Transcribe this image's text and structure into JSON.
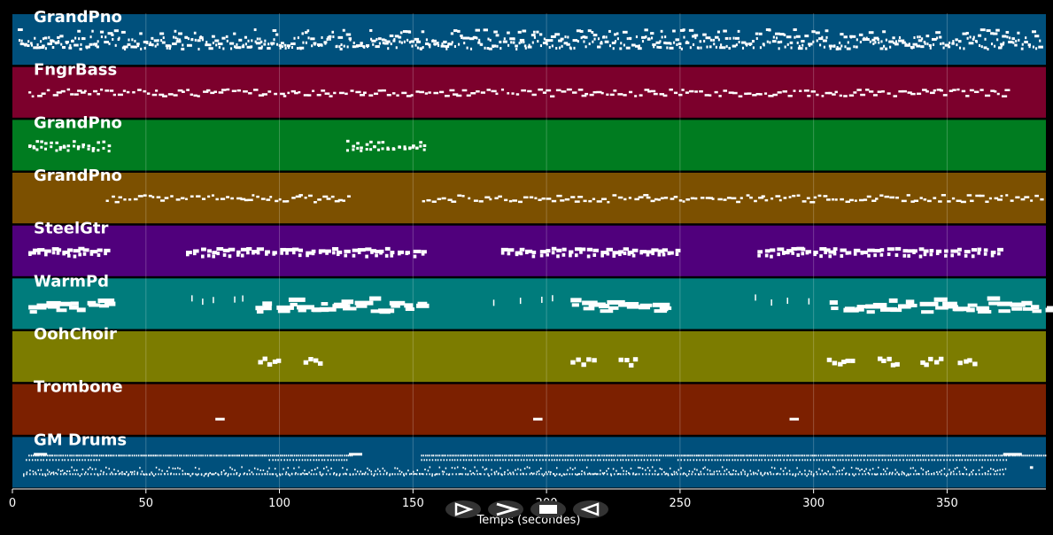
{
  "timeline": {
    "x_axis_label": "Temps (secondes)",
    "x_range": [
      0,
      387
    ],
    "x_ticks": [
      0,
      50,
      100,
      150,
      200,
      250,
      300,
      350
    ]
  },
  "tracks": [
    {
      "name": "GrandPno",
      "color": "#00507c",
      "pattern": "dense"
    },
    {
      "name": "FngrBass",
      "color": "#7c002c",
      "pattern": "line"
    },
    {
      "name": "GrandPno",
      "color": "#007c20",
      "pattern": "sparse"
    },
    {
      "name": "GrandPno",
      "color": "#7c5000",
      "pattern": "line"
    },
    {
      "name": "SteelGtr",
      "color": "#50007c",
      "pattern": "blocks"
    },
    {
      "name": "WarmPd",
      "color": "#007c7c",
      "pattern": "pads"
    },
    {
      "name": "OohChoir",
      "color": "#7c7c00",
      "pattern": "choir"
    },
    {
      "name": "Trombone",
      "color": "#7c2000",
      "pattern": "hits"
    },
    {
      "name": "GM Drums",
      "color": "#00507c",
      "pattern": "drums"
    }
  ],
  "controls": {
    "buttons": [
      {
        "name": "play-button",
        "icon": "play-icon"
      },
      {
        "name": "forward-button",
        "icon": "forward-icon"
      },
      {
        "name": "stop-button",
        "icon": "stop-icon"
      },
      {
        "name": "rewind-button",
        "icon": "rewind-icon"
      }
    ]
  }
}
